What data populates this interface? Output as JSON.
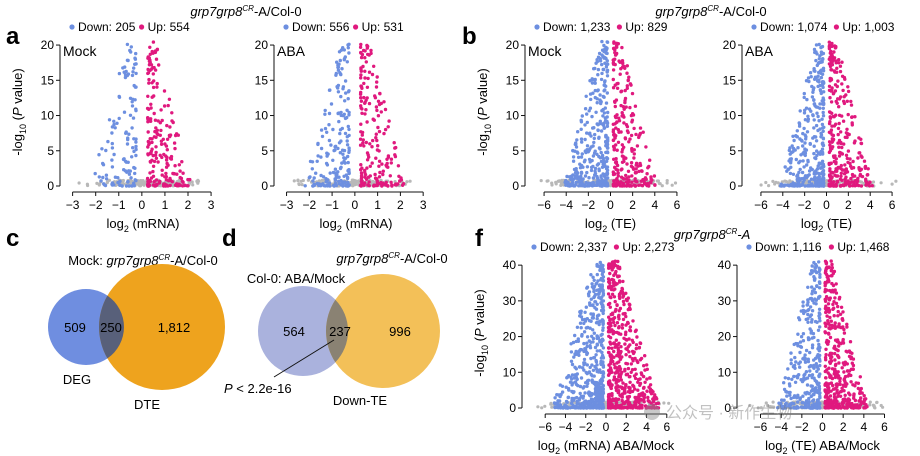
{
  "panel_letters": {
    "a": "a",
    "b": "b",
    "c": "c",
    "d": "d",
    "f": "f"
  },
  "headers": {
    "a": {
      "gene": "grp7grp8",
      "sup": "CR",
      "rest": "-A/Col-0"
    },
    "b": {
      "gene": "grp7grp8",
      "sup": "CR",
      "rest": "-A/Col-0"
    },
    "f": {
      "gene": "grp7grp8",
      "sup": "CR",
      "rest": "-A"
    }
  },
  "legend_words": {
    "down": "Down:",
    "up": "Up:"
  },
  "ylabel": {
    "prefix": "-log",
    "sub": "10",
    "mid": " (",
    "p": "P",
    "suffix": " value)"
  },
  "colors": {
    "down": "#6d8fe0",
    "up": "#e0197e",
    "ns": "#b8b8b8",
    "venn_blue": "#6f8ee0",
    "venn_orange": "#eea31e",
    "venn_overlap": "#58607a",
    "venn_purple": "#aab2dd",
    "venn_yellow": "#f3c058",
    "venn_overlap2": "#8a8273"
  },
  "chart_data": [
    {
      "id": "a1",
      "type": "scatter",
      "condition": "Mock",
      "down_label": "205",
      "up_label": "554",
      "xlabel": {
        "base": "log",
        "sub": "2",
        "text": " (mRNA)"
      },
      "ylabel_shown": true,
      "xlim": [
        -3.2,
        3.3
      ],
      "ylim": [
        0,
        21
      ],
      "xticks": [
        -3,
        -2,
        -1,
        0,
        1,
        2,
        3
      ],
      "yticks": [
        0,
        5,
        10,
        15,
        20
      ],
      "n_down": 120,
      "n_up": 200,
      "spread": 0.9
    },
    {
      "id": "a2",
      "type": "scatter",
      "condition": "ABA",
      "down_label": "556",
      "up_label": "531",
      "xlabel": {
        "base": "log",
        "sub": "2",
        "text": " (mRNA)"
      },
      "ylabel_shown": false,
      "xlim": [
        -3.2,
        3.3
      ],
      "ylim": [
        0,
        21
      ],
      "xticks": [
        -3,
        -2,
        -1,
        0,
        1,
        2,
        3
      ],
      "yticks": [
        0,
        5,
        10,
        15,
        20
      ],
      "n_down": 190,
      "n_up": 190,
      "spread": 0.9
    },
    {
      "id": "b1",
      "type": "scatter",
      "condition": "Mock",
      "down_label": "1,233",
      "up_label": "829",
      "xlabel": {
        "base": "log",
        "sub": "2",
        "text": " (TE)"
      },
      "ylabel_shown": true,
      "xlim": [
        -7,
        7
      ],
      "ylim": [
        0,
        21
      ],
      "xticks": [
        -6,
        -4,
        -2,
        0,
        2,
        4,
        6
      ],
      "yticks": [
        0,
        5,
        10,
        15,
        20
      ],
      "n_down": 360,
      "n_up": 260,
      "spread": 1.8
    },
    {
      "id": "b2",
      "type": "scatter",
      "condition": "ABA",
      "down_label": "1,074",
      "up_label": "1,003",
      "xlabel": {
        "base": "log",
        "sub": "2",
        "text": " (TE)"
      },
      "ylabel_shown": false,
      "xlim": [
        -7,
        7
      ],
      "ylim": [
        0,
        21
      ],
      "xticks": [
        -6,
        -4,
        -2,
        0,
        2,
        4,
        6
      ],
      "yticks": [
        0,
        5,
        10,
        15,
        20
      ],
      "n_down": 330,
      "n_up": 300,
      "spread": 1.8
    },
    {
      "id": "f1",
      "type": "scatter",
      "condition": "",
      "down_label": "2,337",
      "up_label": "2,273",
      "xlabel": {
        "base": "log",
        "sub": "2",
        "text": " (mRNA) ABA/Mock"
      },
      "ylabel_shown": true,
      "xlim": [
        -7.5,
        7.5
      ],
      "ylim": [
        0,
        42
      ],
      "xticks": [
        -6,
        -4,
        -2,
        0,
        2,
        4,
        6
      ],
      "yticks": [
        0,
        10,
        20,
        30,
        40
      ],
      "n_down": 520,
      "n_up": 520,
      "spread": 2.3
    },
    {
      "id": "f2",
      "type": "scatter",
      "condition": "",
      "down_label": "1,116",
      "up_label": "1,468",
      "xlabel": {
        "base": "log",
        "sub": "2",
        "text": " (TE) ABA/Mock"
      },
      "ylabel_shown": false,
      "xlim": [
        -7.5,
        7.5
      ],
      "ylim": [
        0,
        42
      ],
      "xticks": [
        -6,
        -4,
        -2,
        0,
        2,
        4,
        6
      ],
      "yticks": [
        0,
        10,
        20,
        30,
        40
      ],
      "n_down": 320,
      "n_up": 420,
      "spread": 1.9
    }
  ],
  "venn_c": {
    "title_prefix": "Mock: ",
    "gene": "grp7grp8",
    "sup": "CR",
    "rest": "-A/Col-0",
    "left_only": "509",
    "overlap": "250",
    "right_only": "1,812",
    "left_label": "DEG",
    "right_label": "DTE"
  },
  "venn_d": {
    "title_gene": "grp7grp8",
    "sup": "CR",
    "title_rest": "-A/Col-0",
    "col_label": "Col-0: ABA/Mock",
    "left_only": "564",
    "overlap": "237",
    "right_only": "996",
    "right_label": "Down-TE",
    "pvalue_p": "P",
    "pvalue_rest": " < 2.2e-16"
  },
  "watermark": {
    "text": "公众号 · 新作生物"
  }
}
